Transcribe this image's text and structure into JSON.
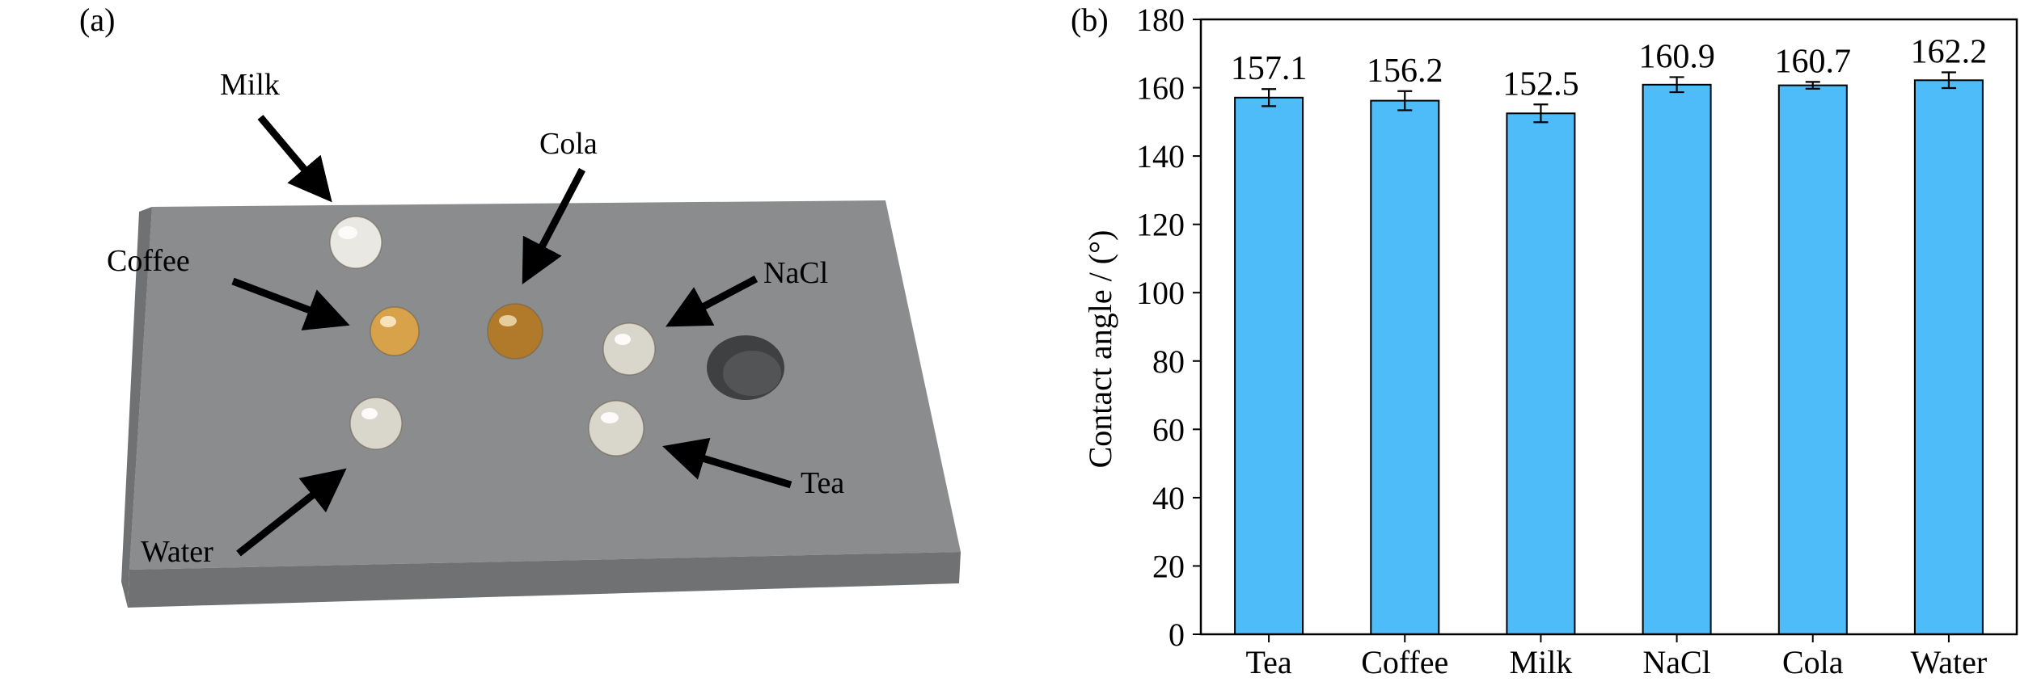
{
  "panels": {
    "a_label": "(a)",
    "b_label": "(b)"
  },
  "photo": {
    "drop_labels": {
      "milk": "Milk",
      "cola": "Cola",
      "coffee": "Coffee",
      "nacl": "NaCl",
      "tea": "Tea",
      "water": "Water"
    },
    "colors": {
      "plate": "#8a8c8e",
      "plate_edge": "#6f7173",
      "milk_drop": "#e9e8e3",
      "coffee_drop": "#d8a24a",
      "cola_drop": "#b07a2a",
      "clear_drop": "#d9d6cc",
      "arrow": "#000000"
    }
  },
  "chart_data": {
    "type": "bar",
    "categories": [
      "Tea",
      "Coffee",
      "Milk",
      "NaCl",
      "Cola",
      "Water"
    ],
    "values": [
      157.1,
      156.2,
      152.5,
      160.9,
      160.7,
      162.2
    ],
    "errors": [
      2.5,
      2.8,
      2.6,
      2.2,
      1.0,
      2.3
    ],
    "value_labels": [
      "157.1",
      "156.2",
      "152.5",
      "160.9",
      "160.7",
      "162.2"
    ],
    "ylabel": "Contact angle / (°)",
    "xlabel": "",
    "ylim": [
      0,
      180
    ],
    "yticks": [
      0,
      20,
      40,
      60,
      80,
      100,
      120,
      140,
      160,
      180
    ],
    "grid": false,
    "bar_color": "#4dbcf9",
    "bar_edge_color": "#000000"
  }
}
